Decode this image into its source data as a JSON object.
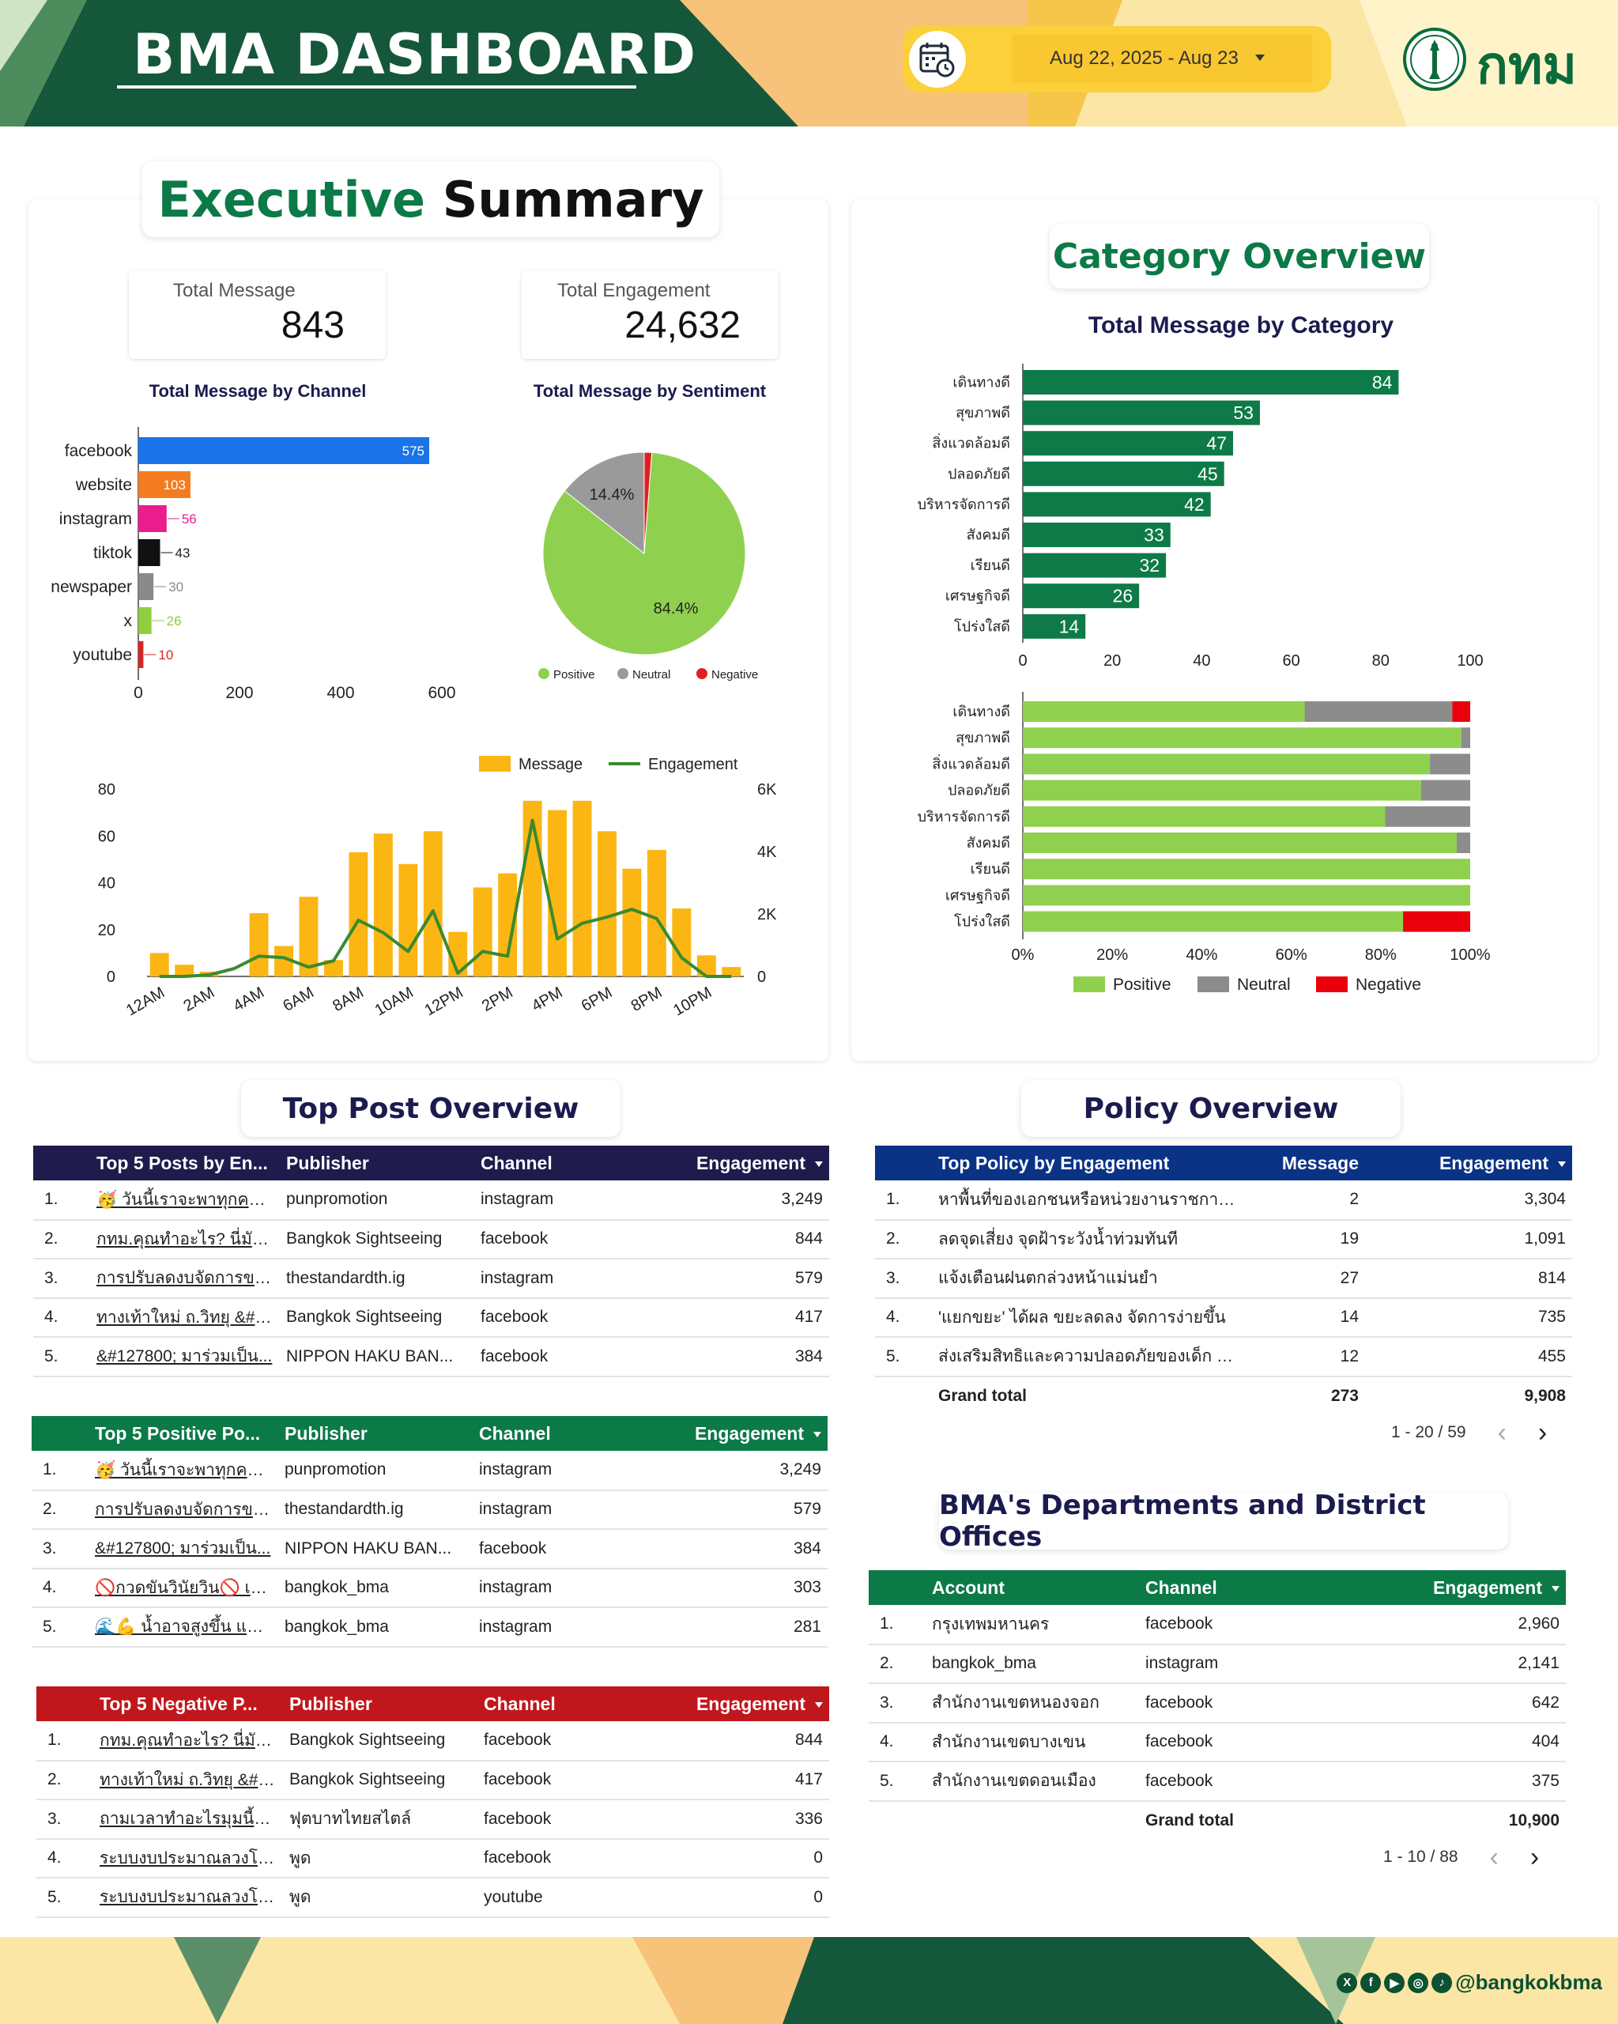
{
  "header": {
    "title": "BMA DASHBOARD",
    "date_range": "Aug 22, 2025 - Aug 23",
    "logo_text": "กทม"
  },
  "executive_summary": {
    "title_part1": "Executive",
    "title_part2": "Summary",
    "total_message_label": "Total Message",
    "total_message_value": "843",
    "total_engagement_label": "Total Engagement",
    "total_engagement_value": "24,632"
  },
  "category_overview": {
    "title": "Category Overview"
  },
  "top_post_overview": {
    "title": "Top Post Overview"
  },
  "policy_overview": {
    "title": "Policy Overview"
  },
  "departments_title": "BMA's Departments and District Offices",
  "chart_data": [
    {
      "id": "channel",
      "type": "bar",
      "orientation": "horizontal",
      "title": "Total Message by Channel",
      "categories": [
        "facebook",
        "website",
        "instagram",
        "tiktok",
        "newspaper",
        "x",
        "youtube"
      ],
      "values": [
        575,
        103,
        56,
        43,
        30,
        26,
        10
      ],
      "colors": [
        "#1a73e8",
        "#f47c20",
        "#e91e8c",
        "#111111",
        "#8a8a8a",
        "#8fce3c",
        "#d62728"
      ],
      "xlim": [
        0,
        600
      ],
      "xticks": [
        0,
        200,
        400,
        600
      ]
    },
    {
      "id": "sentiment",
      "type": "pie",
      "title": "Total Message by Sentiment",
      "labels": [
        "Positive",
        "Neutral",
        "Negative"
      ],
      "values": [
        84.4,
        14.4,
        1.2
      ],
      "slice_labels": [
        "84.4%",
        "14.4%",
        ""
      ],
      "colors": [
        "#8fd14f",
        "#9a9a9a",
        "#e02020"
      ],
      "legend": "bottom"
    },
    {
      "id": "hourly",
      "type": "bar+line",
      "series": [
        {
          "name": "Message",
          "type": "bar",
          "color": "#fbb613",
          "values": [
            10,
            5,
            2,
            0,
            27,
            13,
            34,
            7,
            53,
            61,
            48,
            62,
            19,
            38,
            44,
            75,
            71,
            75,
            62,
            46,
            54,
            29,
            9,
            4
          ]
        },
        {
          "name": "Engagement",
          "type": "line",
          "color": "#3a8a2e",
          "axis": "right",
          "values": [
            0,
            0,
            50,
            250,
            650,
            600,
            300,
            500,
            1800,
            1400,
            800,
            2100,
            100,
            800,
            650,
            5000,
            1200,
            1700,
            1900,
            2150,
            1850,
            600,
            0,
            0
          ]
        }
      ],
      "xticks": [
        "12AM",
        "2AM",
        "4AM",
        "6AM",
        "8AM",
        "10AM",
        "12PM",
        "2PM",
        "4PM",
        "6PM",
        "8PM",
        "10PM"
      ],
      "ylim": [
        0,
        80
      ],
      "yticks": [
        0,
        20,
        40,
        60,
        80
      ],
      "y2lim": [
        0,
        6000
      ],
      "y2ticks": [
        "0",
        "2K",
        "4K",
        "6K"
      ],
      "legend": "top-right"
    },
    {
      "id": "category",
      "type": "bar",
      "orientation": "horizontal",
      "title": "Total Message by Category",
      "categories": [
        "เดินทางดี",
        "สุขภาพดี",
        "สิ่งแวดล้อมดี",
        "ปลอดภัยดี",
        "บริหารจัดการดี",
        "สังคมดี",
        "เรียนดี",
        "เศรษฐกิจดี",
        "โปร่งใสดี"
      ],
      "values": [
        84,
        53,
        47,
        45,
        42,
        33,
        32,
        26,
        14
      ],
      "color": "#0e7a47",
      "xlim": [
        0,
        100
      ],
      "xticks": [
        0,
        20,
        40,
        60,
        80,
        100
      ]
    },
    {
      "id": "category_sentiment",
      "type": "bar",
      "orientation": "horizontal",
      "stacked": "percent",
      "categories": [
        "เดินทางดี",
        "สุขภาพดี",
        "สิ่งแวดล้อมดี",
        "ปลอดภัยดี",
        "บริหารจัดการดี",
        "สังคมดี",
        "เรียนดี",
        "เศรษฐกิจดี",
        "โปร่งใสดี"
      ],
      "series": [
        {
          "name": "Positive",
          "color": "#8fd14f",
          "values": [
            63,
            98,
            91,
            89,
            81,
            97,
            100,
            100,
            85
          ]
        },
        {
          "name": "Neutral",
          "color": "#8c8c8c",
          "values": [
            33,
            2,
            9,
            11,
            19,
            3,
            0,
            0,
            0
          ]
        },
        {
          "name": "Negative",
          "color": "#e8000b",
          "values": [
            4,
            0,
            0,
            0,
            0,
            0,
            0,
            0,
            15
          ]
        }
      ],
      "xticks": [
        "0%",
        "20%",
        "40%",
        "60%",
        "80%",
        "100%"
      ],
      "legend": "bottom"
    }
  ],
  "tables": {
    "top_engagement": {
      "header_color": "#1f1b4d",
      "columns": [
        "Top 5 Posts by En...",
        "Publisher",
        "Channel",
        "Engagement"
      ],
      "rows": [
        [
          "1.",
          "🥳 วันนี้เราจะพาทุกคนมา...",
          "punpromotion",
          "instagram",
          "3,249"
        ],
        [
          "2.",
          "กทม.คุณทำอะไร? นี่มันแบ...",
          "Bangkok Sightseeing",
          "facebook",
          "844"
        ],
        [
          "3.",
          "การปรับลดงบจัดการขยะข...",
          "thestandardth.ig",
          "instagram",
          "579"
        ],
        [
          "4.",
          "ทางเท้าใหม่ ถ.วิทยุ &#12...",
          "Bangkok Sightseeing",
          "facebook",
          "417"
        ],
        [
          "5.",
          "&#127800; มาร่วมเป็น...",
          "NIPPON HAKU BAN...",
          "facebook",
          "384"
        ]
      ]
    },
    "top_positive": {
      "header_color": "#0b7a47",
      "columns": [
        "Top 5 Positive Po...",
        "Publisher",
        "Channel",
        "Engagement"
      ],
      "rows": [
        [
          "1.",
          "🥳 วันนี้เราจะพาทุกคนมา...",
          "punpromotion",
          "instagram",
          "3,249"
        ],
        [
          "2.",
          "การปรับลดงบจัดการขยะข...",
          "thestandardth.ig",
          "instagram",
          "579"
        ],
        [
          "3.",
          "&#127800; มาร่วมเป็น...",
          "NIPPON HAKU BAN...",
          "facebook",
          "384"
        ],
        [
          "4.",
          "🚫กวดขันวินัยวิน🚫 เหตุ...",
          "bangkok_bma",
          "instagram",
          "303"
        ],
        [
          "5.",
          "🌊💪 น้ำอาจสูงขึ้น แต่หั...",
          "bangkok_bma",
          "instagram",
          "281"
        ]
      ]
    },
    "top_negative": {
      "header_color": "#c0171d",
      "columns": [
        "Top 5 Negative P...",
        "Publisher",
        "Channel",
        "Engagement"
      ],
      "rows": [
        [
          "1.",
          "กทม.คุณทำอะไร? นี่มันแบ...",
          "Bangkok Sightseeing",
          "facebook",
          "844"
        ],
        [
          "2.",
          "ทางเท้าใหม่ ถ.วิทยุ &#12...",
          "Bangkok Sightseeing",
          "facebook",
          "417"
        ],
        [
          "3.",
          "ถามเวลาทำอะไรมุมนี้ไม่ได้...",
          "ฟุตบาทไทยสไตล์",
          "facebook",
          "336"
        ],
        [
          "4.",
          "ระบบงบประมาณลวงโลกข...",
          "พูด",
          "facebook",
          "0"
        ],
        [
          "5.",
          "ระบบงบประมาณลวงโลกข...",
          "พูด",
          "youtube",
          "0"
        ]
      ]
    },
    "policy": {
      "header_color": "#0a3386",
      "columns": [
        "Top Policy by Engagement",
        "Message",
        "Engagement"
      ],
      "rows": [
        [
          "1.",
          "หาพื้นที่ของเอกชนหรือหน่วยงานราชการ...",
          "2",
          "3,304"
        ],
        [
          "2.",
          "ลดจุดเสี่ยง จุดฝ้าระวังน้ำท่วมทันที",
          "19",
          "1,091"
        ],
        [
          "3.",
          "แจ้งเตือนฝนตกล่วงหน้าแม่นยำ",
          "27",
          "814"
        ],
        [
          "4.",
          "'แยกขยะ' ได้ผล ขยะลดลง จัดการง่ายขึ้น",
          "14",
          "735"
        ],
        [
          "5.",
          "ส่งเสริมสิทธิและความปลอดภัยของเด็ก ก...",
          "12",
          "455"
        ]
      ],
      "grand_total_label": "Grand total",
      "grand_total_message": "273",
      "grand_total_engagement": "9,908",
      "pagination": "1 - 20 / 59"
    },
    "departments": {
      "header_color": "#0b7a47",
      "columns": [
        "Account",
        "Channel",
        "Engagement"
      ],
      "rows": [
        [
          "1.",
          "กรุงเทพมหานคร",
          "facebook",
          "2,960"
        ],
        [
          "2.",
          "bangkok_bma",
          "instagram",
          "2,141"
        ],
        [
          "3.",
          "สำนักงานเขตหนองจอก",
          "facebook",
          "642"
        ],
        [
          "4.",
          "สำนักงานเขตบางเขน",
          "facebook",
          "404"
        ],
        [
          "5.",
          "สำนักงานเขตดอนเมือง",
          "facebook",
          "375"
        ]
      ],
      "grand_total_label": "Grand total",
      "grand_total_engagement": "10,900",
      "pagination": "1 - 10 / 88"
    }
  },
  "footer": {
    "handle": "@bangkokbma"
  }
}
